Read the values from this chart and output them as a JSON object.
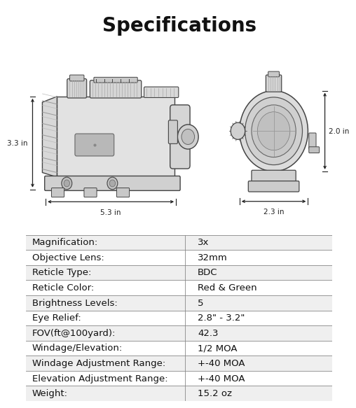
{
  "title": "Specifications",
  "title_fontsize": 20,
  "title_fontweight": "bold",
  "bg_color": "#ffffff",
  "table_bg_alt": "#efefef",
  "table_bg_white": "#ffffff",
  "table_border_color": "#888888",
  "table_text_color": "#111111",
  "table_fontsize": 9.5,
  "rows": [
    [
      "Magnification:",
      "3x"
    ],
    [
      "Objective Lens:",
      "32mm"
    ],
    [
      "Reticle Type:",
      "BDC"
    ],
    [
      "Reticle Color:",
      "Red & Green"
    ],
    [
      "Brightness Levels:",
      "5"
    ],
    [
      "Eye Relief:",
      "2.8\" - 3.2\""
    ],
    [
      "FOV(ft@100yard):",
      "42.3"
    ],
    [
      "Windage/Elevation:",
      "1/2 MOA"
    ],
    [
      "Windage Adjustment Range:",
      "+-40 MOA"
    ],
    [
      "Elevation Adjustment Range:",
      "+-40 MOA"
    ],
    [
      "Weight:",
      "15.2 oz"
    ]
  ],
  "dim_color": "#222222",
  "dim_label_53": "5.3 in",
  "dim_label_33": "3.3 in",
  "dim_label_23": "2.3 in",
  "dim_label_20": "2.0 in",
  "scope_color": "#cccccc",
  "scope_edge": "#444444",
  "scope_dark": "#aaaaaa",
  "col_split": 0.52
}
